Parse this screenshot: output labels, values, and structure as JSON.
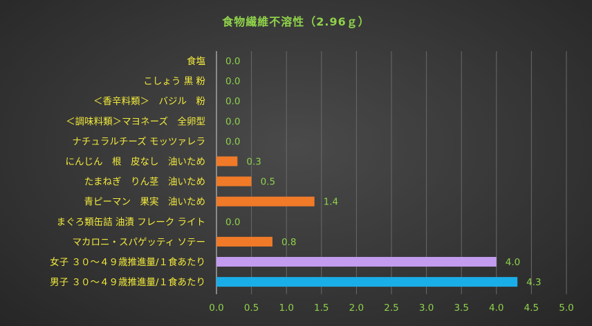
{
  "chart_data": {
    "type": "bar",
    "orientation": "horizontal",
    "title": "食物繊維不溶性（2.96ｇ）",
    "xlabel": "",
    "ylabel": "",
    "xlim": [
      0,
      5.0
    ],
    "xticks": [
      "0.0",
      "0.5",
      "1.0",
      "1.5",
      "2.0",
      "2.5",
      "3.0",
      "3.5",
      "4.0",
      "4.5",
      "5.0"
    ],
    "grid": true,
    "legend": "none",
    "categories": [
      "食塩",
      "こしょう 黒 粉",
      "＜香辛料類＞　バジル　粉",
      "＜調味料類＞マヨネーズ　全卵型",
      "ナチュラルチーズ モッツァレラ",
      "にんじん　根　皮なし　油いため",
      "たまねぎ　りん茎　油いため",
      "青ピーマン　果実　油いため",
      "まぐろ類缶詰 油漬 フレーク ライト",
      "マカロニ・スパゲッティ ソテー",
      "女子 ３０～４９歳推進量/１食あたり",
      "男子 ３０～４９歳推進量/１食あたり"
    ],
    "values": [
      0.0,
      0.0,
      0.0,
      0.0,
      0.0,
      0.3,
      0.5,
      1.4,
      0.0,
      0.8,
      4.0,
      4.3
    ],
    "value_labels": [
      "0.0",
      "0.0",
      "0.0",
      "0.0",
      "0.0",
      "0.3",
      "0.5",
      "1.4",
      "0.0",
      "0.8",
      "4.0",
      "4.3"
    ],
    "bar_colors": [
      "#f07a28",
      "#f07a28",
      "#f07a28",
      "#f07a28",
      "#f07a28",
      "#f07a28",
      "#f07a28",
      "#f07a28",
      "#f07a28",
      "#f07a28",
      "#c39cf0",
      "#1aaee8"
    ],
    "colors": {
      "background": "#3a3a3a",
      "title": "#8fd24a",
      "category_text": "#f2ea3c",
      "value_text": "#8fd24a",
      "ingredient_bar": "#f07a28",
      "female_bar": "#c39cf0",
      "male_bar": "#1aaee8"
    }
  }
}
